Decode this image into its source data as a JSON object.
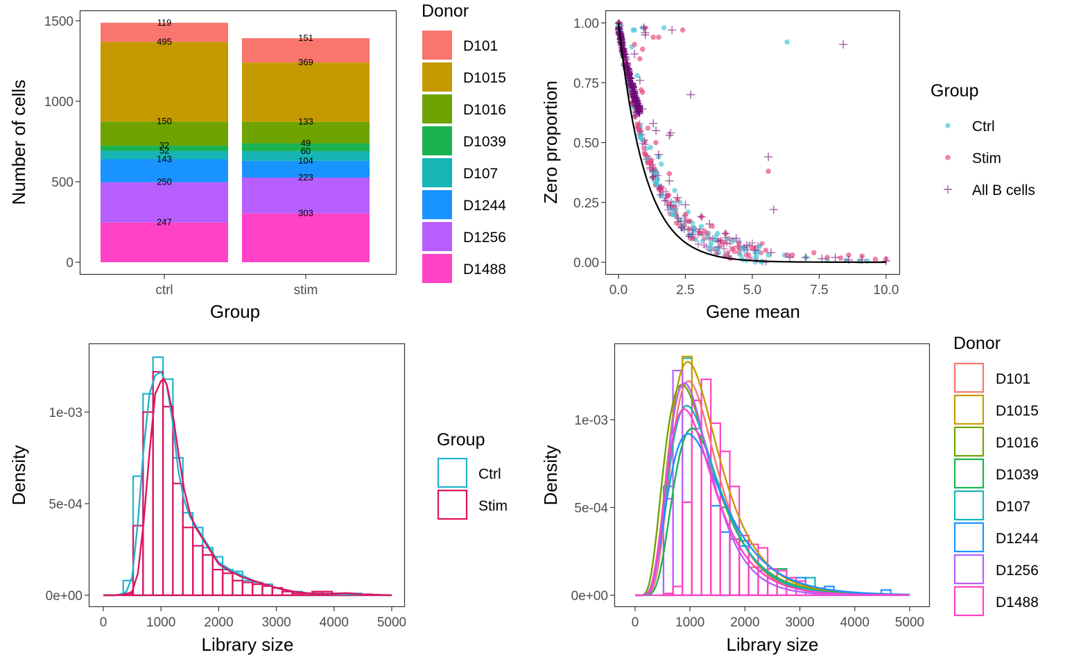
{
  "chart_data": [
    {
      "id": "cells_per_donor",
      "type": "bar",
      "stacked": true,
      "title": "",
      "xlabel": "Group",
      "ylabel": "Number of cells",
      "categories": [
        "ctrl",
        "stim"
      ],
      "yticks": [
        "0",
        "500",
        "1000",
        "1500"
      ],
      "ytick_values": [
        0,
        500,
        1000,
        1500
      ],
      "ylim": [
        0,
        1500
      ],
      "series": [
        {
          "name": "D101",
          "color": "#F8766D",
          "values": [
            119,
            151
          ]
        },
        {
          "name": "D1015",
          "color": "#C49A00",
          "values": [
            495,
            369
          ]
        },
        {
          "name": "D1016",
          "color": "#6FA300",
          "values": [
            150,
            133
          ]
        },
        {
          "name": "D1039",
          "color": "#1BB352",
          "values": [
            32,
            49
          ]
        },
        {
          "name": "D107",
          "color": "#17B5B5",
          "values": [
            52,
            60
          ]
        },
        {
          "name": "D1244",
          "color": "#1893FF",
          "values": [
            143,
            104
          ]
        },
        {
          "name": "D1256",
          "color": "#B75EFF",
          "values": [
            250,
            223
          ]
        },
        {
          "name": "D1488",
          "color": "#FF42C7",
          "values": [
            247,
            303
          ]
        }
      ],
      "legend": {
        "title": "Donor",
        "position": "right"
      },
      "grid": false
    },
    {
      "id": "zero_proportion",
      "type": "scatter",
      "xlabel": "Gene mean",
      "ylabel": "Zero proportion",
      "xlim": [
        0,
        10
      ],
      "ylim": [
        0,
        1
      ],
      "xticks": [
        "0.0",
        "2.5",
        "5.0",
        "7.5",
        "10.0"
      ],
      "xtick_values": [
        0,
        2.5,
        5,
        7.5,
        10
      ],
      "yticks": [
        "0.00",
        "0.25",
        "0.50",
        "0.75",
        "1.00"
      ],
      "ytick_values": [
        0,
        0.25,
        0.5,
        0.75,
        1
      ],
      "reference_curve": {
        "formula": "exp(-x)",
        "color": "#000000"
      },
      "series": [
        {
          "name": "Ctrl",
          "color": "#45C4D6",
          "marker": "circle",
          "alpha": 0.65,
          "points": [
            [
              0.55,
              0.97
            ],
            [
              0.6,
              0.97
            ],
            [
              0.9,
              0.98
            ],
            [
              1.7,
              0.98
            ],
            [
              6.3,
              0.92
            ],
            [
              0.5,
              0.9
            ],
            [
              0.7,
              0.78
            ],
            [
              1.2,
              0.48
            ],
            [
              1.5,
              0.44
            ],
            [
              1.6,
              0.41
            ],
            [
              2.1,
              0.3
            ],
            [
              2.3,
              0.25
            ],
            [
              2.6,
              0.21
            ],
            [
              3.1,
              0.15
            ],
            [
              3.7,
              0.12
            ],
            [
              4.3,
              0.09
            ],
            [
              4.6,
              0.06
            ],
            [
              5.1,
              0.04
            ],
            [
              5.6,
              0.03
            ],
            [
              6.2,
              0.03
            ],
            [
              7.0,
              0.02
            ],
            [
              7.8,
              0.01
            ],
            [
              8.5,
              0.008
            ],
            [
              9.0,
              0.005
            ],
            [
              9.3,
              0.005
            ]
          ]
        },
        {
          "name": "Stim",
          "color": "#E8407A",
          "marker": "circle",
          "alpha": 0.65,
          "points": [
            [
              1.0,
              0.98
            ],
            [
              1.3,
              0.94
            ],
            [
              1.5,
              0.94
            ],
            [
              2.4,
              0.97
            ],
            [
              0.6,
              0.91
            ],
            [
              0.9,
              0.89
            ],
            [
              0.8,
              0.85
            ],
            [
              0.85,
              0.72
            ],
            [
              0.9,
              0.71
            ],
            [
              1.1,
              0.56
            ],
            [
              1.4,
              0.5
            ],
            [
              5.6,
              0.38
            ],
            [
              1.9,
              0.37
            ],
            [
              2.2,
              0.26
            ],
            [
              2.5,
              0.2
            ],
            [
              3.1,
              0.19
            ],
            [
              3.5,
              0.15
            ],
            [
              4.0,
              0.12
            ],
            [
              4.5,
              0.08
            ],
            [
              5.0,
              0.06
            ],
            [
              5.5,
              0.05
            ],
            [
              6.3,
              0.03
            ],
            [
              6.5,
              0.03
            ],
            [
              7.3,
              0.04
            ],
            [
              7.8,
              0.02
            ],
            [
              8.3,
              0.018
            ],
            [
              8.6,
              0.03
            ],
            [
              9.1,
              0.026
            ],
            [
              9.6,
              0.012
            ],
            [
              10.0,
              0.014
            ]
          ]
        },
        {
          "name": "All B cells",
          "color": "#7B1A7E",
          "marker": "plus",
          "alpha": 0.7,
          "points": [
            [
              0.95,
              0.98
            ],
            [
              1.0,
              0.96
            ],
            [
              1.0,
              0.95
            ],
            [
              2.0,
              0.97
            ],
            [
              8.4,
              0.91
            ],
            [
              0.6,
              0.87
            ],
            [
              0.8,
              0.76
            ],
            [
              2.7,
              0.7
            ],
            [
              0.9,
              0.64
            ],
            [
              1.3,
              0.58
            ],
            [
              1.4,
              0.55
            ],
            [
              1.9,
              0.53
            ],
            [
              1.95,
              0.54
            ],
            [
              5.6,
              0.44
            ],
            [
              1.5,
              0.45
            ],
            [
              1.9,
              0.34
            ],
            [
              5.8,
              0.22
            ],
            [
              2.2,
              0.27
            ],
            [
              2.5,
              0.24
            ],
            [
              3.1,
              0.19
            ],
            [
              3.4,
              0.16
            ],
            [
              4.0,
              0.12
            ],
            [
              4.4,
              0.1
            ],
            [
              4.8,
              0.07
            ],
            [
              5.1,
              0.05
            ],
            [
              5.7,
              0.04
            ],
            [
              6.4,
              0.02
            ],
            [
              7.0,
              0.02
            ],
            [
              7.6,
              0.015
            ],
            [
              8.1,
              0.02
            ],
            [
              8.6,
              0.01
            ],
            [
              9.1,
              0.01
            ],
            [
              10.0,
              0.005
            ]
          ]
        }
      ],
      "legend": {
        "title": "Group",
        "position": "right"
      },
      "grid": false
    },
    {
      "id": "libsize_by_group",
      "type": "area",
      "subtype": "histogram_with_density",
      "xlabel": "Library size",
      "ylabel": "Density",
      "xlim": [
        0,
        5000
      ],
      "xticks": [
        "0",
        "1000",
        "2000",
        "3000",
        "4000",
        "5000"
      ],
      "xtick_values": [
        0,
        1000,
        2000,
        3000,
        4000,
        5000
      ],
      "yticks": [
        "0e+00",
        "5e-04",
        "1e-03"
      ],
      "ytick_values": [
        0,
        0.0005,
        0.001
      ],
      "bin_width": 172.4,
      "bin_start": 0,
      "series": [
        {
          "name": "Ctrl",
          "color": "#1FB3CF",
          "hist": [
            0,
            0,
            8e-05,
            0.00065,
            0.0011,
            0.0013,
            0.00118,
            0.00075,
            0.00045,
            0.00037,
            0.00026,
            0.00021,
            0.00014,
            0.00013,
            8e-05,
            7e-05,
            6e-05,
            4e-05,
            2e-05,
            2e-05,
            1e-05,
            1e-05,
            1e-05,
            1e-05,
            1e-05,
            1e-05,
            0,
            0,
            0,
            0
          ],
          "density_x": [
            0,
            200,
            300,
            400,
            500,
            600,
            700,
            800,
            900,
            1000,
            1100,
            1200,
            1300,
            1400,
            1500,
            1600,
            1800,
            2000,
            2200,
            2400,
            2600,
            2800,
            3000,
            3300,
            3600,
            4000,
            4500,
            5000
          ],
          "density_y": [
            0,
            0,
            5e-06,
            2e-05,
            0.0001,
            0.0004,
            0.0008,
            0.0011,
            0.0012,
            0.00122,
            0.00115,
            0.00095,
            0.00068,
            0.00052,
            0.00043,
            0.00038,
            0.00028,
            0.00018,
            0.00014,
            0.00011,
            8e-05,
            6e-05,
            4e-05,
            2e-05,
            1e-05,
            6e-06,
            4e-06,
            0
          ]
        },
        {
          "name": "Stim",
          "color": "#E0115F",
          "hist": [
            0,
            0,
            1e-05,
            0.00038,
            0.001,
            0.00122,
            0.00103,
            0.00061,
            0.00037,
            0.00027,
            0.00022,
            0.00014,
            0.00012,
            8e-05,
            7e-05,
            6e-05,
            5e-05,
            4e-05,
            2e-05,
            1e-05,
            1e-05,
            2e-05,
            2e-05,
            1e-05,
            1e-05,
            5e-06,
            5e-06,
            0,
            0,
            0
          ],
          "density_x": [
            0,
            200,
            400,
            500,
            600,
            700,
            800,
            900,
            1000,
            1050,
            1100,
            1200,
            1300,
            1400,
            1500,
            1600,
            1800,
            2000,
            2200,
            2400,
            2600,
            2800,
            3000,
            3300,
            3600,
            4000,
            4200,
            4500,
            5000
          ],
          "density_y": [
            0,
            0,
            5e-06,
            2e-05,
            0.00012,
            0.0004,
            0.00078,
            0.0011,
            0.00117,
            0.00118,
            0.00115,
            0.001,
            0.00078,
            0.00058,
            0.00045,
            0.00037,
            0.00027,
            0.00017,
            0.00013,
            0.0001,
            8e-05,
            6e-05,
            4e-05,
            2e-05,
            1e-05,
            8e-06,
            1.2e-05,
            5e-06,
            0
          ]
        }
      ],
      "legend": {
        "title": "Group",
        "position": "right"
      },
      "grid": false
    },
    {
      "id": "libsize_by_donor",
      "type": "area",
      "subtype": "histogram_with_density",
      "xlabel": "Library size",
      "ylabel": "Density",
      "xlim": [
        0,
        5000
      ],
      "xticks": [
        "0",
        "1000",
        "2000",
        "3000",
        "4000",
        "5000"
      ],
      "xtick_values": [
        0,
        1000,
        2000,
        3000,
        4000,
        5000
      ],
      "yticks": [
        "0e+00",
        "5e-04",
        "1e-03"
      ],
      "ytick_values": [
        0,
        0.0005,
        0.001
      ],
      "bin_width": 172.4,
      "bin_start": 0,
      "series": [
        {
          "name": "D101",
          "color": "#F8766D",
          "peak_x": 1030,
          "peak_y": 0.00122
        },
        {
          "name": "D1015",
          "color": "#C49A00",
          "peak_x": 1050,
          "peak_y": 0.00133
        },
        {
          "name": "D1016",
          "color": "#6FA300",
          "peak_x": 970,
          "peak_y": 0.0012
        },
        {
          "name": "D1039",
          "color": "#1BB352",
          "peak_x": 1100,
          "peak_y": 0.00095
        },
        {
          "name": "D107",
          "color": "#17B5B5",
          "peak_x": 1030,
          "peak_y": 0.00108
        },
        {
          "name": "D1244",
          "color": "#1893FF",
          "peak_x": 1100,
          "peak_y": 0.00092
        },
        {
          "name": "D1256",
          "color": "#B75EFF",
          "peak_x": 950,
          "peak_y": 0.00121
        },
        {
          "name": "D1488",
          "color": "#FF42C7",
          "peak_x": 980,
          "peak_y": 0.00106
        }
      ],
      "hist_D1488": [
        0,
        0,
        0,
        1e-05,
        5e-05,
        0.00053,
        0.00111,
        0.00123,
        0.00098,
        0.00082,
        0.00062,
        0.00034,
        0.00029,
        0.00027,
        0.00015,
        0.00014,
        0.0001,
        8e-05,
        5e-05,
        4e-05,
        3e-05,
        2e-05,
        1e-05,
        1e-05,
        1e-05,
        0,
        0,
        0,
        0
      ],
      "hist_extra_outlines": [
        {
          "series": "D107",
          "bins": [
            [
              3,
              0.00062
            ],
            [
              5,
              0.00135
            ],
            [
              6,
              0.00095
            ],
            [
              18,
              0.0001
            ]
          ]
        },
        {
          "series": "D1015",
          "bins": [
            [
              5,
              0.00136
            ]
          ]
        },
        {
          "series": "D1256",
          "bins": [
            [
              4,
              0.00128
            ],
            [
              3,
              0.00055
            ]
          ]
        },
        {
          "series": "D1039",
          "bins": [
            [
              9,
              0.0005
            ],
            [
              10,
              0.00032
            ],
            [
              14,
              0.00015
            ],
            [
              15,
              0.00015
            ]
          ]
        },
        {
          "series": "D1244",
          "bins": [
            [
              8,
              0.00051
            ],
            [
              9,
              0.00036
            ],
            [
              11,
              0.00028
            ],
            [
              13,
              0.00014
            ],
            [
              17,
              0.0001
            ],
            [
              20,
              5e-05
            ],
            [
              26,
              3e-05
            ]
          ]
        },
        {
          "series": "D1016",
          "bins": [
            [
              11,
              0.00031
            ]
          ]
        },
        {
          "series": "D101",
          "bins": [
            [
              12,
              0.00016
            ]
          ]
        }
      ],
      "legend": {
        "title": "Donor",
        "position": "right"
      },
      "grid": false
    }
  ],
  "legends": {
    "bar_donor": {
      "title": "Donor",
      "items": [
        "D101",
        "D1015",
        "D1016",
        "D1039",
        "D107",
        "D1244",
        "D1256",
        "D1488"
      ]
    },
    "scatter_group": {
      "title": "Group",
      "items": [
        "Ctrl",
        "Stim",
        "All B cells"
      ]
    },
    "hist_group": {
      "title": "Group",
      "items": [
        "Ctrl",
        "Stim"
      ]
    },
    "hist_donor": {
      "title": "Donor",
      "items": [
        "D101",
        "D1015",
        "D1016",
        "D1039",
        "D107",
        "D1244",
        "D1256",
        "D1488"
      ]
    }
  }
}
